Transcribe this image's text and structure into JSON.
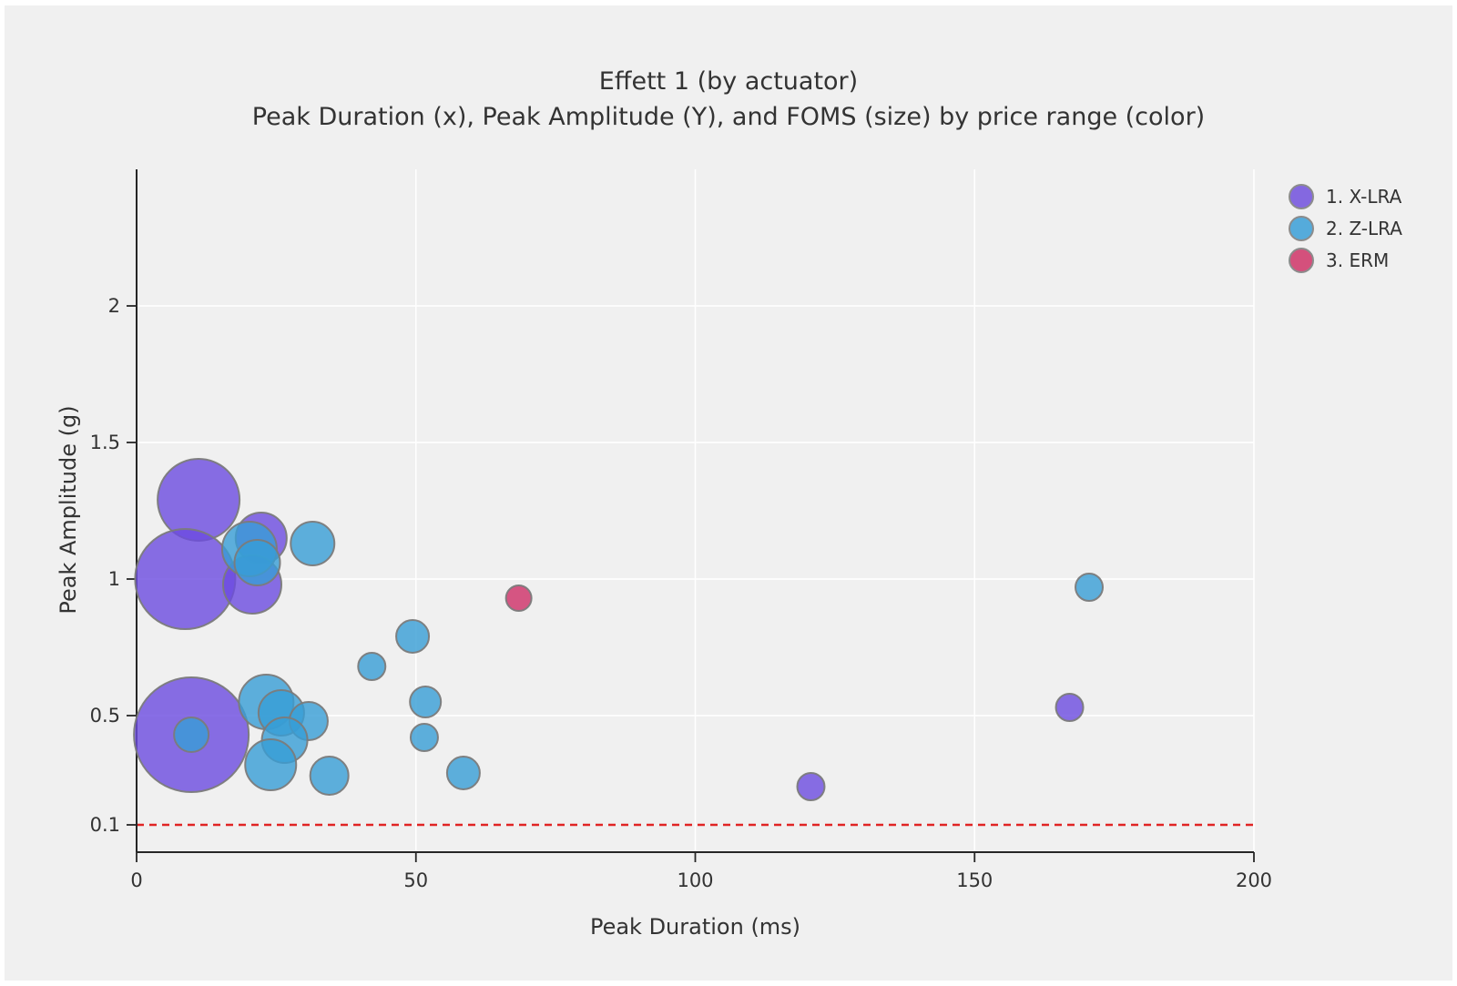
{
  "chart_data": {
    "type": "scatter",
    "subtype": "bubble",
    "title": "Effett 1 (by actuator)",
    "subtitle": "Peak Duration (x), Peak Amplitude (Y), and FOMS (size) by price range (color)",
    "xlabel": "Peak Duration (ms)",
    "ylabel": "Peak Amplitude (g)",
    "x_ticks": [
      0,
      50,
      100,
      150,
      200
    ],
    "y_ticks": [
      0.1,
      0.5,
      1,
      1.5,
      2
    ],
    "xlim": [
      0,
      200
    ],
    "ylim": [
      0,
      2.5
    ],
    "grid": "on",
    "background_color": "#f0f0f0",
    "gridline_color": "#ffffff",
    "axis_color": "#262626",
    "threshold_line": {
      "y": 0.1,
      "color": "#e02424",
      "style": "dashed"
    },
    "size_note": "bubble size encodes FOMS; r is rendered radius in px",
    "legend_position": "top-right",
    "series": [
      {
        "name": "1. X-LRA",
        "legend_color": "#8468E0",
        "fill_color": "#6B4BE0",
        "points": [
          {
            "x": 11.1,
            "y": 1.29,
            "r": 45
          },
          {
            "x": 8.7,
            "y": 1.0,
            "r": 55
          },
          {
            "x": 22.3,
            "y": 1.15,
            "r": 28
          },
          {
            "x": 20.7,
            "y": 0.98,
            "r": 32
          },
          {
            "x": 9.8,
            "y": 0.43,
            "r": 63
          },
          {
            "x": 120.7,
            "y": 0.24,
            "r": 15
          },
          {
            "x": 167.0,
            "y": 0.53,
            "r": 15
          }
        ]
      },
      {
        "name": "2. Z-LRA",
        "legend_color": "#55ABDB",
        "fill_color": "#379DD6",
        "points": [
          {
            "x": 20.2,
            "y": 1.11,
            "r": 30
          },
          {
            "x": 21.6,
            "y": 1.06,
            "r": 25
          },
          {
            "x": 31.5,
            "y": 1.13,
            "r": 24
          },
          {
            "x": 9.8,
            "y": 0.43,
            "r": 19
          },
          {
            "x": 23.2,
            "y": 0.55,
            "r": 30
          },
          {
            "x": 25.9,
            "y": 0.51,
            "r": 25
          },
          {
            "x": 30.8,
            "y": 0.48,
            "r": 21
          },
          {
            "x": 26.5,
            "y": 0.41,
            "r": 25
          },
          {
            "x": 24.0,
            "y": 0.32,
            "r": 28
          },
          {
            "x": 34.5,
            "y": 0.28,
            "r": 21
          },
          {
            "x": 42.1,
            "y": 0.68,
            "r": 15
          },
          {
            "x": 49.4,
            "y": 0.79,
            "r": 18
          },
          {
            "x": 51.7,
            "y": 0.55,
            "r": 17
          },
          {
            "x": 51.5,
            "y": 0.42,
            "r": 15
          },
          {
            "x": 58.5,
            "y": 0.29,
            "r": 18
          },
          {
            "x": 170.5,
            "y": 0.97,
            "r": 15
          }
        ]
      },
      {
        "name": "3. ERM",
        "legend_color": "#D4507C",
        "fill_color": "#CE2E66",
        "points": [
          {
            "x": 68.4,
            "y": 0.93,
            "r": 14
          }
        ]
      }
    ]
  }
}
